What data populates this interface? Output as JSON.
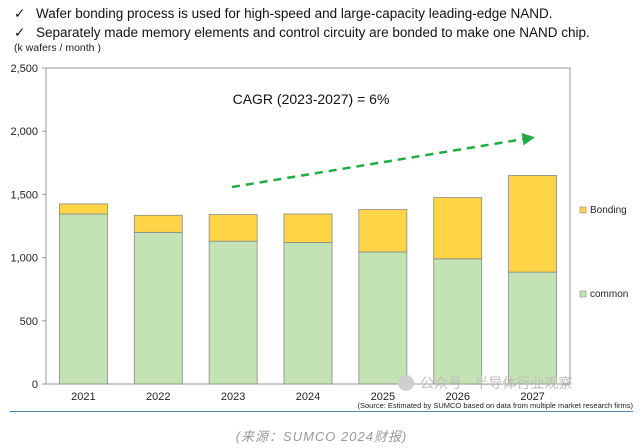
{
  "bullets": [
    "Wafer bonding process is used for high-speed and large-capacity leading-edge NAND.",
    "Separately made memory elements and control circuity are bonded to make one NAND chip."
  ],
  "bullet_icon": "checkmark-icon",
  "check_glyph": "✓",
  "unit_label": "(k wafers / month )",
  "source": "(Source: Estimated by SUMCO based on data from multiple market research firms)",
  "caption": "(来源：SUMCO 2024财报)",
  "watermark": "公众号 · 半导体行业观察",
  "colors": {
    "common": "#c4e3b4",
    "bonding": "#ffd547",
    "arrow": "#22aa44",
    "axis": "#999999",
    "bar_border": "#888888"
  },
  "chart_data": {
    "type": "bar",
    "stacked": true,
    "categories": [
      "2021",
      "2022",
      "2023",
      "2024",
      "2025",
      "2026",
      "2027"
    ],
    "series": [
      {
        "name": "common",
        "values": [
          1345,
          1200,
          1130,
          1120,
          1045,
          990,
          885
        ]
      },
      {
        "name": "Bonding",
        "values": [
          80,
          135,
          210,
          225,
          335,
          485,
          765
        ]
      }
    ],
    "ylim": [
      0,
      2500
    ],
    "yticks": [
      0,
      500,
      1000,
      1500,
      2000,
      2500
    ],
    "ytick_labels": [
      "0",
      "500",
      "1,000",
      "1,500",
      "2,000",
      "2,500"
    ],
    "annotation": "CAGR (2023-2027) = 6%",
    "grid": false,
    "legend_position": "right"
  }
}
